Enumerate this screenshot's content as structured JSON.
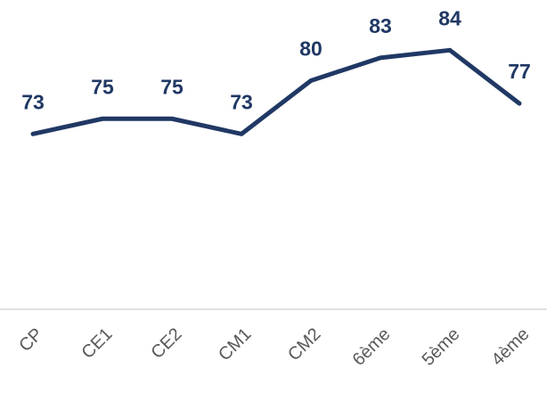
{
  "chart_data": {
    "type": "line",
    "categories": [
      "CP",
      "CE1",
      "CE2",
      "CM1",
      "CM2",
      "6ème",
      "5ème",
      "4ème"
    ],
    "series": [
      {
        "color": "#203864",
        "values": [
          73,
          75,
          75,
          73,
          80,
          83,
          84,
          77
        ]
      }
    ],
    "ylim": [
      50,
      90
    ]
  }
}
